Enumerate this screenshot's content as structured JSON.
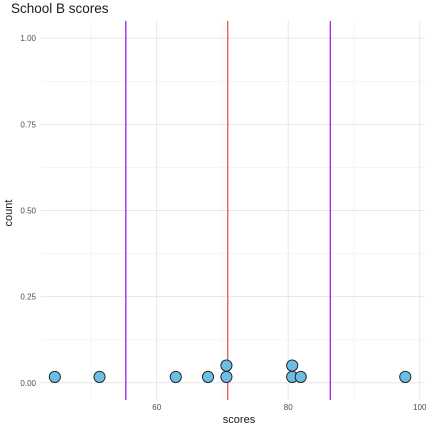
{
  "chart_data": {
    "type": "scatter",
    "title": "School B scores",
    "xlabel": "scores",
    "ylabel": "count",
    "xlim": [
      42.4,
      100.8
    ],
    "ylim": [
      -0.05,
      1.05
    ],
    "x_ticks": [
      60,
      80,
      100
    ],
    "y_ticks": [
      0.0,
      0.25,
      0.5,
      0.75,
      1.0
    ],
    "y_tick_labels": [
      "0.00",
      "0.25",
      "0.50",
      "0.75",
      "1.00"
    ],
    "points": [
      {
        "x": 44.5,
        "y": 0.017
      },
      {
        "x": 51.3,
        "y": 0.017
      },
      {
        "x": 62.9,
        "y": 0.017
      },
      {
        "x": 67.8,
        "y": 0.017
      },
      {
        "x": 70.6,
        "y": 0.017
      },
      {
        "x": 70.6,
        "y": 0.05
      },
      {
        "x": 80.6,
        "y": 0.017
      },
      {
        "x": 80.6,
        "y": 0.05
      },
      {
        "x": 81.9,
        "y": 0.017
      },
      {
        "x": 97.8,
        "y": 0.017
      }
    ],
    "vlines": [
      {
        "x": 55.3,
        "color": "#a020f0"
      },
      {
        "x": 70.8,
        "color": "#e05a5a"
      },
      {
        "x": 86.4,
        "color": "#a020f0"
      }
    ],
    "point_fill": "#6bbde3",
    "point_stroke": "#1a1a1a",
    "grid": true
  }
}
